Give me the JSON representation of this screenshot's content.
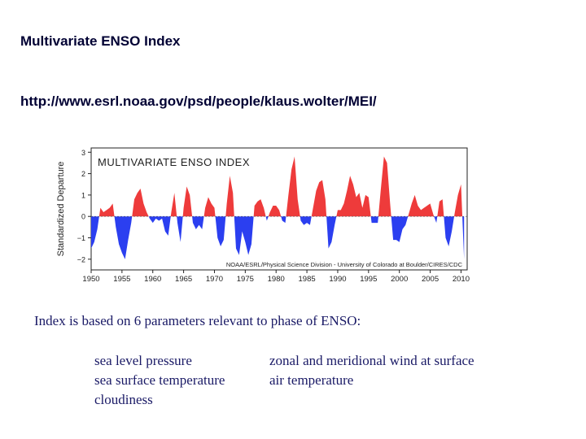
{
  "slide": {
    "title": "Multivariate ENSO Index",
    "url": "http://www.esrl.noaa.gov/psd/people/klaus.wolter/MEI/",
    "intro": "Index is based on 6 parameters relevant to phase of ENSO:",
    "parameters_left": [
      "sea level pressure",
      "sea surface temperature",
      "cloudiness"
    ],
    "parameters_right": [
      "zonal and meridional wind at surface",
      "air temperature"
    ]
  },
  "chart_data": {
    "type": "area",
    "title": "MULTIVARIATE ENSO INDEX",
    "ylabel": "Standardized Departure",
    "xlabel": "",
    "credit": "NOAA/ESRL/Physical Science Division - University of Colorado at Boulder/CIRES/CDC",
    "xlim": [
      1950,
      2011
    ],
    "ylim": [
      -2.5,
      3.2
    ],
    "x_ticks": [
      1950,
      1955,
      1960,
      1965,
      1970,
      1975,
      1980,
      1985,
      1990,
      1995,
      2000,
      2005,
      2010
    ],
    "x_tick_labels": [
      "1950",
      "1955",
      "1960",
      "1965",
      "1970",
      "1975",
      "1980",
      "1985",
      "1990",
      "1995",
      "2000",
      "2005",
      "2010"
    ],
    "y_ticks": [
      -2,
      -1,
      0,
      1,
      2,
      3
    ],
    "y_tick_labels": [
      "−2",
      "−1",
      "0",
      "1",
      "2",
      "3"
    ],
    "positive_color": "#ee3b3b",
    "negative_color": "#2b3ff0",
    "series": [
      {
        "x": [
          1950.0,
          1950.5,
          1951.0,
          1951.5,
          1952.0,
          1952.5,
          1953.0,
          1953.5,
          1954.0,
          1954.5,
          1955.0,
          1955.5,
          1956.0,
          1956.5,
          1957.0,
          1957.5,
          1958.0,
          1958.5,
          1959.0,
          1959.5,
          1960.0,
          1960.5,
          1961.0,
          1961.5,
          1962.0,
          1962.5,
          1963.0,
          1963.5,
          1964.0,
          1964.5,
          1965.0,
          1965.5,
          1966.0,
          1966.5,
          1967.0,
          1967.5,
          1968.0,
          1968.5,
          1969.0,
          1969.5,
          1970.0,
          1970.5,
          1971.0,
          1971.5,
          1972.0,
          1972.5,
          1973.0,
          1973.5,
          1974.0,
          1974.5,
          1975.0,
          1975.5,
          1976.0,
          1976.5,
          1977.0,
          1977.5,
          1978.0,
          1978.5,
          1979.0,
          1979.5,
          1980.0,
          1980.5,
          1981.0,
          1981.5,
          1982.0,
          1982.5,
          1983.0,
          1983.5,
          1984.0,
          1984.5,
          1985.0,
          1985.5,
          1986.0,
          1986.5,
          1987.0,
          1987.5,
          1988.0,
          1988.5,
          1989.0,
          1989.5,
          1990.0,
          1990.5,
          1991.0,
          1991.5,
          1992.0,
          1992.5,
          1993.0,
          1993.5,
          1994.0,
          1994.5,
          1995.0,
          1995.5,
          1996.0,
          1996.5,
          1997.0,
          1997.5,
          1998.0,
          1998.5,
          1999.0,
          1999.5,
          2000.0,
          2000.5,
          2001.0,
          2001.5,
          2002.0,
          2002.5,
          2003.0,
          2003.5,
          2004.0,
          2004.5,
          2005.0,
          2005.5,
          2006.0,
          2006.5,
          2007.0,
          2007.5,
          2008.0,
          2008.5,
          2009.0,
          2009.5,
          2010.0,
          2010.5
        ],
        "y": [
          -1.5,
          -1.2,
          -0.6,
          0.4,
          0.2,
          0.3,
          0.4,
          0.6,
          -0.5,
          -1.3,
          -1.7,
          -2.0,
          -1.1,
          -0.3,
          0.8,
          1.1,
          1.3,
          0.6,
          0.2,
          -0.1,
          -0.3,
          -0.1,
          -0.2,
          -0.1,
          -0.7,
          -0.9,
          0.2,
          1.1,
          -0.3,
          -1.2,
          0.4,
          1.4,
          1.0,
          -0.3,
          -0.6,
          -0.4,
          -0.6,
          0.4,
          0.9,
          0.6,
          0.4,
          -1.0,
          -1.4,
          -1.1,
          0.6,
          1.9,
          1.1,
          -1.5,
          -1.8,
          -0.7,
          -1.2,
          -1.8,
          -1.3,
          0.5,
          0.7,
          0.8,
          0.4,
          -0.2,
          0.2,
          0.5,
          0.5,
          0.3,
          -0.2,
          -0.3,
          1.0,
          2.2,
          2.8,
          0.8,
          -0.2,
          -0.4,
          -0.3,
          -0.4,
          0.4,
          1.2,
          1.6,
          1.7,
          0.8,
          -1.5,
          -1.2,
          -0.4,
          0.3,
          0.3,
          0.6,
          1.2,
          1.9,
          1.5,
          0.9,
          1.1,
          0.4,
          1.0,
          0.9,
          -0.3,
          -0.3,
          -0.3,
          1.3,
          2.8,
          2.5,
          0.6,
          -1.1,
          -1.1,
          -1.2,
          -0.6,
          -0.4,
          0.1,
          0.6,
          1.0,
          0.5,
          0.3,
          0.4,
          0.5,
          0.6,
          0.1,
          -0.3,
          0.7,
          0.8,
          -1.0,
          -1.4,
          -0.7,
          0.2,
          1.0,
          1.5,
          -2.0
        ]
      }
    ],
    "grid": false,
    "legend": "none"
  }
}
